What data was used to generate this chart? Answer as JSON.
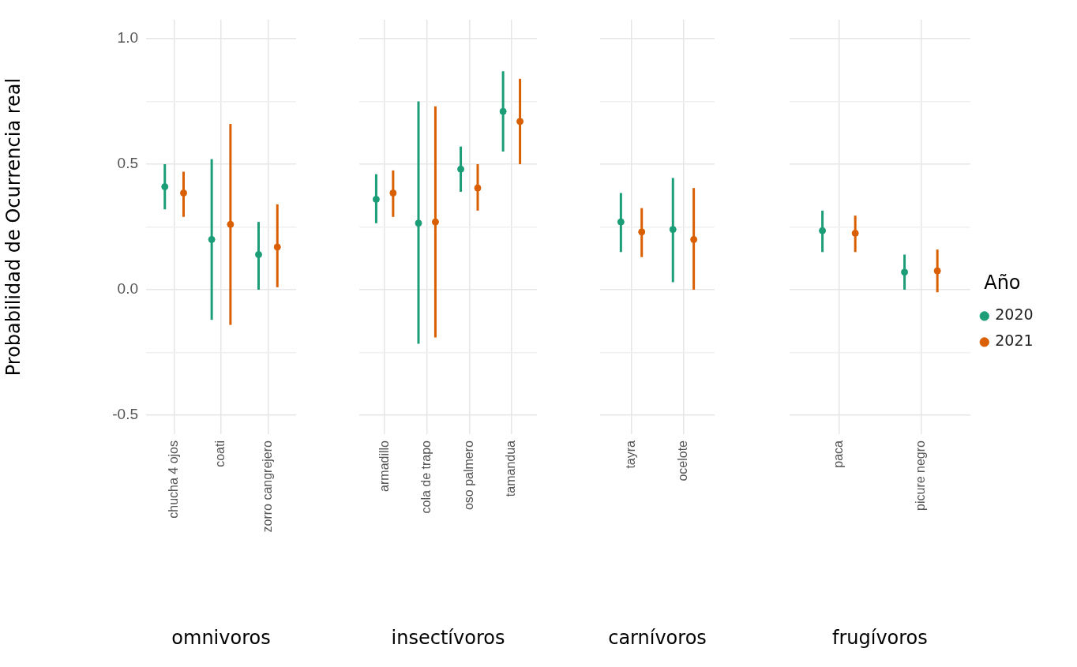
{
  "chart_data": [
    {
      "type": "scatter",
      "xlabel": "omnivoros",
      "ylabel": "Probabilidad de Ocurrencia real",
      "categories": [
        "chucha 4 ojos",
        "coati",
        "zorro cangrejero"
      ],
      "series": [
        {
          "color": "#1b9e77",
          "values": [
            0.41,
            0.2,
            0.14
          ],
          "errors": [
            [
              0.32,
              0.5
            ],
            [
              -0.12,
              0.52
            ],
            [
              0.0,
              0.27
            ]
          ]
        },
        {
          "color": "#d95f02",
          "values": [
            0.385,
            0.26,
            0.17
          ],
          "errors": [
            [
              0.29,
              0.47
            ],
            [
              -0.14,
              0.66
            ],
            [
              0.01,
              0.34
            ]
          ]
        }
      ],
      "ylim": [
        -0.575,
        1.075
      ],
      "yticks": [
        {
          "value": -0.5,
          "label": "-0.5"
        },
        {
          "value": -0.25,
          "label": null
        },
        {
          "value": 0,
          "label": "0.0"
        },
        {
          "value": 0.25,
          "label": null
        },
        {
          "value": 0.5,
          "label": "0.5"
        },
        {
          "value": 0.75,
          "label": null
        },
        {
          "value": 1,
          "label": "1.0"
        }
      ],
      "grid": true,
      "marker": "circle",
      "legend": false
    },
    {
      "type": "scatter",
      "xlabel": "insectívoros",
      "categories": [
        "armadillo",
        "cola de trapo",
        "oso palmero",
        "tamandua"
      ],
      "series": [
        {
          "color": "#1b9e77",
          "values": [
            0.36,
            0.265,
            0.48,
            0.71
          ],
          "errors": [
            [
              0.265,
              0.46
            ],
            [
              -0.215,
              0.75
            ],
            [
              0.39,
              0.57
            ],
            [
              0.55,
              0.87
            ]
          ]
        },
        {
          "color": "#d95f02",
          "values": [
            0.385,
            0.27,
            0.405,
            0.67
          ],
          "errors": [
            [
              0.29,
              0.475
            ],
            [
              -0.19,
              0.73
            ],
            [
              0.315,
              0.5
            ],
            [
              0.5,
              0.84
            ]
          ]
        }
      ],
      "ylim": [
        -0.575,
        1.075
      ],
      "yticks": [
        -0.5,
        {
          "value": -0.25,
          "label": null
        },
        0.0,
        {
          "value": 0.25,
          "label": null
        },
        0.5,
        {
          "value": 0.75,
          "label": null
        },
        1.0
      ],
      "tick_labels": "x",
      "grid": true,
      "marker": "circle",
      "legend": false
    },
    {
      "type": "scatter",
      "xlabel": "carnívoros",
      "categories": [
        "tayra",
        "ocelote"
      ],
      "series": [
        {
          "color": "#1b9e77",
          "values": [
            0.27,
            0.24
          ],
          "errors": [
            [
              0.15,
              0.385
            ],
            [
              0.03,
              0.445
            ]
          ]
        },
        {
          "color": "#d95f02",
          "values": [
            0.23,
            0.2
          ],
          "errors": [
            [
              0.13,
              0.325
            ],
            [
              0.0,
              0.405
            ]
          ]
        }
      ],
      "ylim": [
        -0.575,
        1.075
      ],
      "yticks": [
        -0.5,
        {
          "value": -0.25,
          "label": null
        },
        0.0,
        {
          "value": 0.25,
          "label": null
        },
        0.5,
        {
          "value": 0.75,
          "label": null
        },
        1.0
      ],
      "tick_labels": "x",
      "grid": true,
      "marker": "circle",
      "legend": false
    },
    {
      "type": "scatter",
      "xlabel": "frugívoros",
      "legend_title": "Año",
      "categories": [
        "paca",
        "picure negro"
      ],
      "series": [
        {
          "name": "2020",
          "color": "#1b9e77",
          "values": [
            0.235,
            0.07
          ],
          "errors": [
            [
              0.15,
              0.315
            ],
            [
              0.0,
              0.14
            ]
          ]
        },
        {
          "name": "2021",
          "color": "#d95f02",
          "values": [
            0.225,
            0.075
          ],
          "errors": [
            [
              0.15,
              0.295
            ],
            [
              -0.01,
              0.16
            ]
          ]
        }
      ],
      "ylim": [
        -0.575,
        1.075
      ],
      "yticks": [
        -0.5,
        {
          "value": -0.25,
          "label": null
        },
        0.0,
        {
          "value": 0.25,
          "label": null
        },
        0.5,
        {
          "value": 0.75,
          "label": null
        },
        1.0
      ],
      "tick_labels": "x",
      "grid": true,
      "marker": "circle",
      "legend": "right"
    }
  ]
}
